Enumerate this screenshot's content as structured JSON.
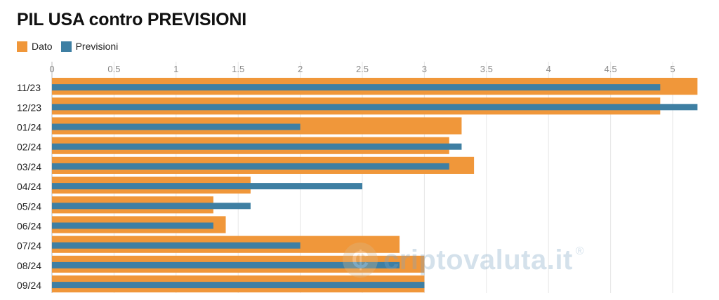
{
  "chart_data": {
    "type": "bar",
    "orientation": "horizontal",
    "title": "PIL USA contro PREVISIONI",
    "categories": [
      "11/23",
      "12/23",
      "01/24",
      "02/24",
      "03/24",
      "04/24",
      "05/24",
      "06/24",
      "07/24",
      "08/24",
      "09/24"
    ],
    "series": [
      {
        "name": "Dato",
        "color": "#F0973A",
        "values": [
          5.2,
          4.9,
          3.3,
          3.2,
          3.4,
          1.6,
          1.3,
          1.4,
          2.8,
          3.0,
          3.0
        ]
      },
      {
        "name": "Previsioni",
        "color": "#3E7FA3",
        "values": [
          4.9,
          5.2,
          2.0,
          3.3,
          3.2,
          2.5,
          1.6,
          1.3,
          2.0,
          2.8,
          3.0
        ]
      }
    ],
    "x_ticks": [
      "0",
      "0.5",
      "1",
      "1.5",
      "2",
      "2.5",
      "3",
      "3.5",
      "4",
      "4.5",
      "5"
    ],
    "xlim": [
      0,
      5.2
    ],
    "axis_position": "top",
    "grid": true,
    "legend_position": "top-left"
  },
  "watermark": {
    "text": "criptovaluta.it",
    "mark": "®",
    "icon": "coin-icon"
  }
}
